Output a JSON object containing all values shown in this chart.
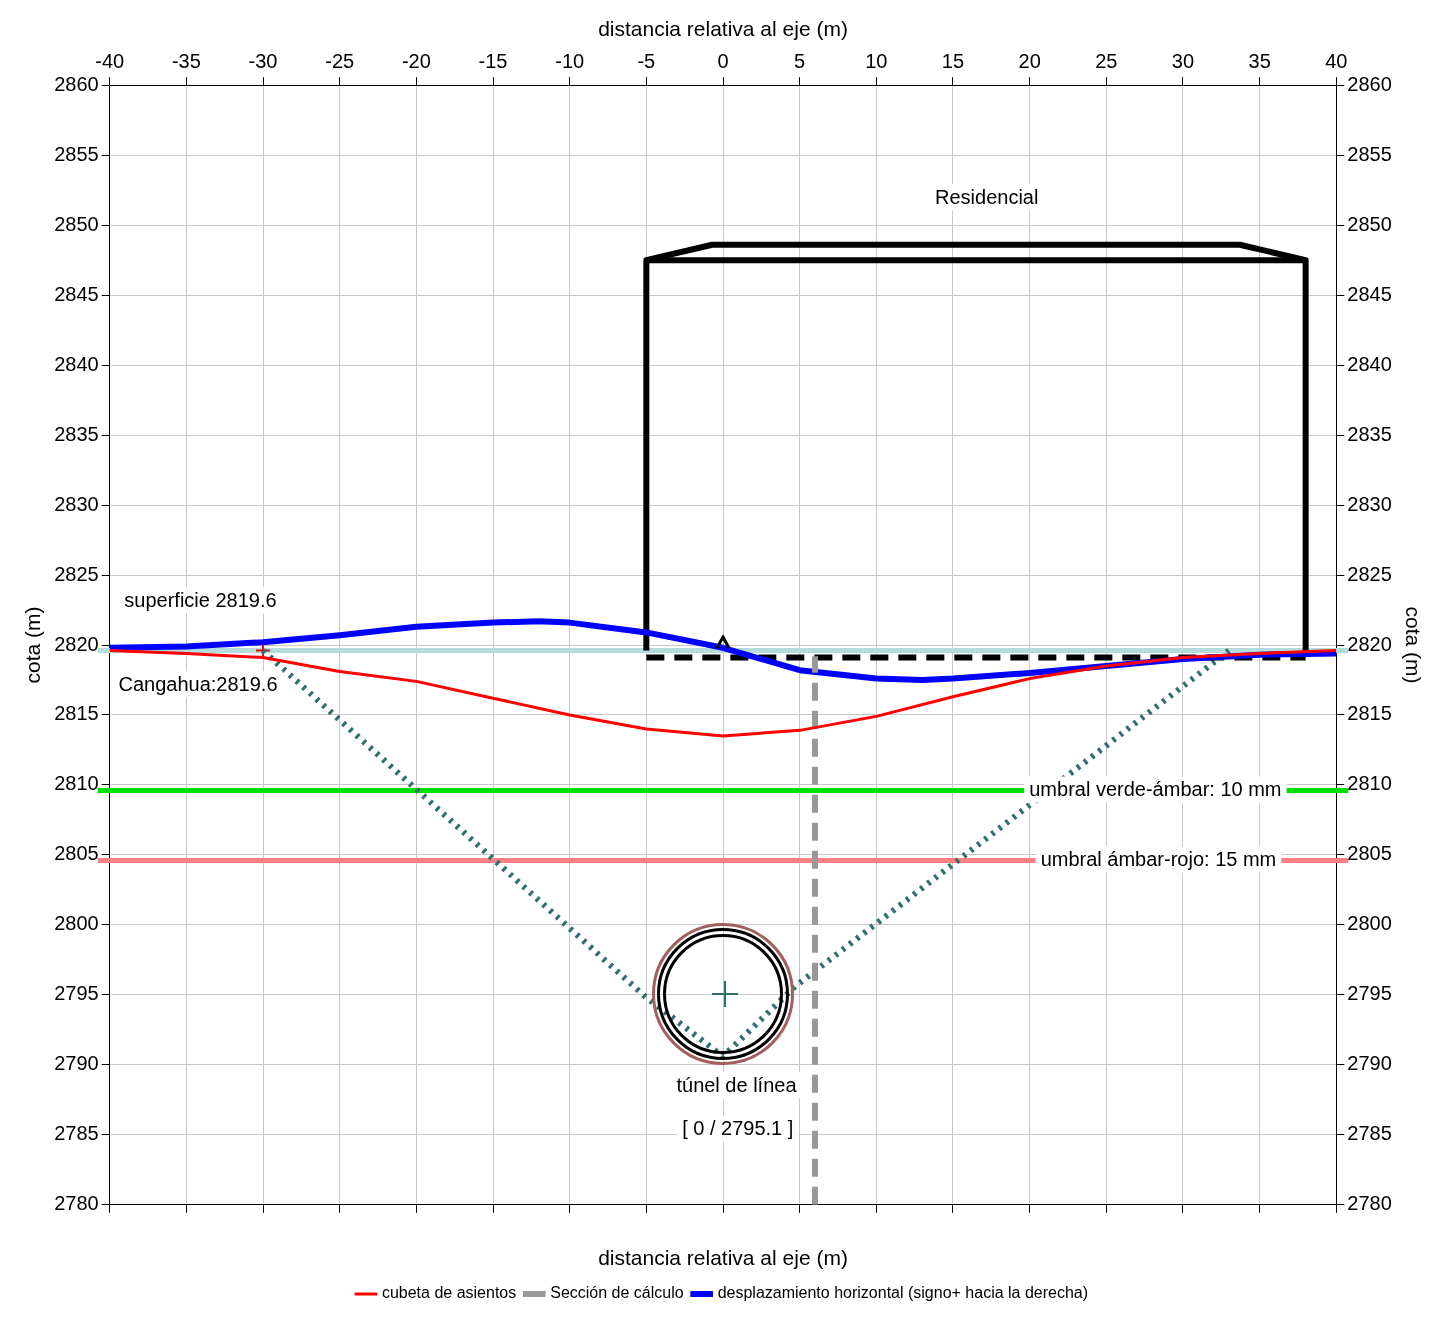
{
  "chart_data": {
    "type": "line",
    "xlabel": "distancia relativa al eje (m)",
    "x2label": "distancia relativa al eje (m)",
    "ylabel": "cota (m)",
    "y2label": "cota (m)",
    "xlim": [
      -40,
      40
    ],
    "xticks": [
      -40,
      -35,
      -30,
      -25,
      -20,
      -15,
      -10,
      -5,
      0,
      5,
      10,
      15,
      20,
      25,
      30,
      35,
      40
    ],
    "ylim": [
      2780,
      2860
    ],
    "yticks": [
      2780,
      2785,
      2790,
      2795,
      2800,
      2805,
      2810,
      2815,
      2820,
      2825,
      2830,
      2835,
      2840,
      2845,
      2850,
      2855,
      2860
    ],
    "y2lim": [
      2780,
      2860
    ],
    "y2ticks": [
      2780,
      2785,
      2790,
      2795,
      2800,
      2805,
      2810,
      2815,
      2820,
      2825,
      2830,
      2835,
      2840,
      2845,
      2850,
      2855,
      2860
    ],
    "grid": true,
    "legend": "bottom",
    "series": [
      {
        "name": "cubeta de asientos",
        "color": "#ff0000",
        "x": [
          -40,
          -35,
          -30,
          -25,
          -20,
          -15,
          -10,
          -5,
          0,
          5,
          10,
          15,
          20,
          25,
          30,
          35,
          40
        ],
        "values": [
          2819.6,
          2819.4,
          2819.1,
          2818.1,
          2817.4,
          2816.2,
          2815.0,
          2814.0,
          2813.5,
          2813.9,
          2814.9,
          2816.3,
          2817.6,
          2818.5,
          2819.1,
          2819.4,
          2819.6
        ]
      },
      {
        "name": "Sección de cálculo",
        "color": "#999999",
        "line_style": "dashed",
        "x": [
          6,
          6
        ],
        "values": [
          2780,
          2819.2
        ]
      },
      {
        "name": "desplazamiento horizontal (signo+ hacia la derecha)",
        "color": "#0000ff",
        "x": [
          -40,
          -35,
          -30,
          -25,
          -20,
          -15,
          -12,
          -10,
          -5,
          0,
          5,
          10,
          13,
          15,
          20,
          25,
          30,
          35,
          40
        ],
        "values": [
          2819.8,
          2819.9,
          2820.2,
          2820.7,
          2821.3,
          2821.6,
          2821.7,
          2821.6,
          2820.9,
          2819.8,
          2818.2,
          2817.6,
          2817.5,
          2817.6,
          2818.0,
          2818.5,
          2819.0,
          2819.3,
          2819.4
        ]
      },
      {
        "color": "#000000",
        "x": [
          -5,
          -5,
          38,
          38
        ],
        "values": [
          2819.6,
          2847.5,
          2847.5,
          2819.6
        ]
      },
      {
        "color": "#000000",
        "x": [
          -5,
          -0.7,
          33.7,
          38
        ],
        "values": [
          2847.5,
          2848.6,
          2848.6,
          2847.5
        ]
      },
      {
        "color": "#000000",
        "line_style": "dashed",
        "x": [
          -5,
          38
        ],
        "values": [
          2819.1,
          2819.1
        ]
      },
      {
        "color": "#2f6f6f",
        "line_style": "dotted",
        "x": [
          -30,
          -5.1,
          0,
          4.7,
          33
        ],
        "values": [
          2819.6,
          2794.9,
          2790.6,
          2795.6,
          2819.6
        ]
      },
      {
        "type": "scatter",
        "color": "#ff0000",
        "marker": "cross",
        "x": [
          -30
        ],
        "values": [
          2819.6
        ]
      }
    ],
    "ref_lines": [
      {
        "axis": "y",
        "value": 2819.6,
        "color": "#b4dcdc"
      },
      {
        "axis": "y",
        "value": 2809.6,
        "color": "#00e000"
      },
      {
        "axis": "y",
        "value": 2804.6,
        "color": "#ff8080"
      }
    ],
    "annotations": [
      "superficie 2819.6",
      "Cangahua:2819.6",
      "Residencial",
      {
        "text": "umbral verde-ámbar: 10 mm",
        "x": 28.2,
        "y": 2809.6
      },
      {
        "text": "umbral ámbar-rojo: 15 mm",
        "x": 28.4,
        "y": 2804.6
      },
      "túnel de línea",
      "[ 0 / 2795.1 ]"
    ]
  }
}
